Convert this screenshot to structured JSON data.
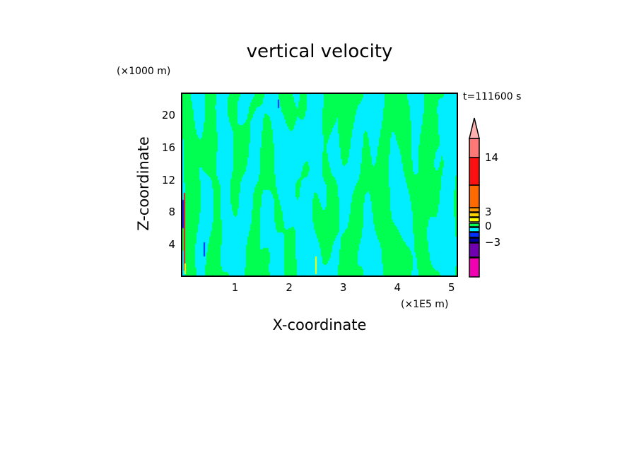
{
  "chart_data": {
    "type": "heatmap",
    "title": "vertical velocity",
    "xlabel": "X-coordinate",
    "ylabel": "Z-coordinate",
    "x_unit": "(×1E5 m)",
    "y_unit": "(×1000 m)",
    "time_label": "t=111600 s",
    "xlim": [
      0,
      5.12
    ],
    "ylim": [
      0,
      22.8
    ],
    "x_ticks": [
      "1",
      "2",
      "3",
      "4",
      "5"
    ],
    "x_tick_values": [
      1,
      2,
      3,
      4,
      5
    ],
    "y_ticks": [
      "4",
      "8",
      "12",
      "16",
      "20"
    ],
    "y_tick_values": [
      4,
      8,
      12,
      16,
      20
    ],
    "colorbar": {
      "labels": [
        "14",
        "3",
        "0",
        "−3"
      ],
      "colors": [
        "#f000b0",
        "#7000b0",
        "#0000a0",
        "#0030ff",
        "#00eeff",
        "#00ff50",
        "#ffff00",
        "#ffd000",
        "#ff9a00",
        "#ff6a00",
        "#ff1010",
        "#ff7878",
        "#ffb0b0"
      ]
    },
    "dominant_colors": {
      "positive_small": "#00ff50",
      "negative_small": "#00eeff"
    }
  }
}
